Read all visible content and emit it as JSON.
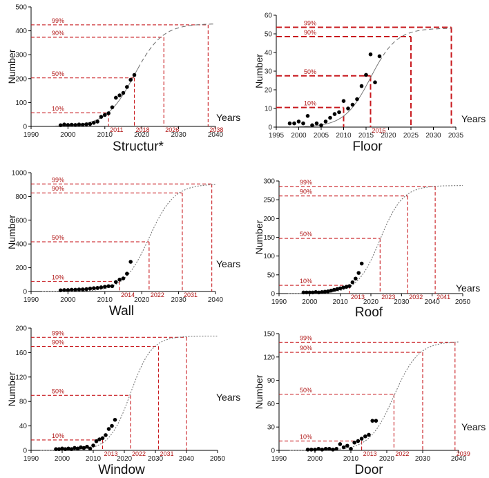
{
  "chart_data": [
    {
      "type": "scatter",
      "title": "Structur*",
      "ylabel": "Number",
      "xlabel": "Years",
      "xlim": [
        1990,
        2040
      ],
      "ylim": [
        0,
        500
      ],
      "xticks": [
        1990,
        2000,
        2010,
        2020,
        2030,
        2040
      ],
      "yticks": [
        0,
        100,
        200,
        300,
        400,
        500
      ],
      "points": {
        "x": [
          1998,
          1999,
          2000,
          2001,
          2002,
          2003,
          2004,
          2005,
          2006,
          2007,
          2008,
          2009,
          2010,
          2011,
          2012,
          2013,
          2014,
          2015,
          2016,
          2017,
          2018
        ],
        "y": [
          5,
          8,
          6,
          7,
          6,
          8,
          7,
          9,
          10,
          15,
          20,
          40,
          48,
          55,
          80,
          120,
          130,
          140,
          165,
          195,
          215
        ]
      },
      "curve": {
        "K": 430,
        "mid": 2018,
        "width": 3.8,
        "x_start": 1996,
        "x_end": 2040,
        "dashed_from": 2019
      },
      "thresholds": [
        {
          "pct_label": "10%",
          "y": 57,
          "year": 2011,
          "year_label": "2011"
        },
        {
          "pct_label": "50%",
          "y": 203,
          "year": 2018,
          "year_label": "2018"
        },
        {
          "pct_label": "90%",
          "y": 373,
          "year": 2026,
          "year_label": "2026"
        },
        {
          "pct_label": "99%",
          "y": 425,
          "year": 2038,
          "year_label": "2038"
        }
      ]
    },
    {
      "type": "scatter",
      "title": "Floor",
      "ylabel": "Number",
      "xlabel": "Years",
      "xlim": [
        1995,
        2035
      ],
      "ylim": [
        0,
        60
      ],
      "xticks": [
        1995,
        2000,
        2005,
        2010,
        2015,
        2020,
        2025,
        2030,
        2035
      ],
      "yticks": [
        0,
        10,
        20,
        30,
        40,
        50,
        60
      ],
      "points": {
        "x": [
          1998,
          1999,
          2000,
          2001,
          2002,
          2003,
          2004,
          2005,
          2006,
          2007,
          2008,
          2009,
          2010,
          2011,
          2012,
          2013,
          2014,
          2015,
          2016,
          2017,
          2018
        ],
        "y": [
          2,
          2,
          3,
          2,
          6,
          1,
          2,
          1,
          3,
          5,
          7,
          8,
          14,
          10,
          12,
          15,
          22,
          28,
          39,
          24,
          38
        ]
      },
      "curve": {
        "K": 53,
        "mid": 2016,
        "width": 2.9,
        "x_start": 1998,
        "x_end": 2034,
        "dashed_from": 2018
      },
      "thresholds": [
        {
          "pct_label": "10%",
          "y": 10.5,
          "year": 2010,
          "year_label": ""
        },
        {
          "pct_label": "50%",
          "y": 27.5,
          "year": 2016,
          "year_label": "2016"
        },
        {
          "pct_label": "90%",
          "y": 48.5,
          "year": 2025,
          "year_label": ""
        },
        {
          "pct_label": "99%",
          "y": 53.5,
          "year": 2034,
          "year_label": ""
        }
      ]
    },
    {
      "type": "scatter",
      "title": "Wall",
      "ylabel": "Number",
      "xlabel": "Years",
      "xlim": [
        1990,
        2040
      ],
      "ylim": [
        0,
        1000
      ],
      "xticks": [
        1990,
        2000,
        2010,
        2020,
        2030,
        2040
      ],
      "yticks": [
        0,
        200,
        400,
        600,
        800,
        1000
      ],
      "points": {
        "x": [
          1998,
          1999,
          2000,
          2001,
          2002,
          2003,
          2004,
          2005,
          2006,
          2007,
          2008,
          2009,
          2010,
          2011,
          2012,
          2013,
          2014,
          2015,
          2016,
          2017
        ],
        "y": [
          10,
          12,
          12,
          15,
          15,
          17,
          18,
          20,
          25,
          28,
          30,
          35,
          40,
          45,
          45,
          80,
          100,
          110,
          150,
          250
        ]
      },
      "curve": {
        "K": 905,
        "mid": 2022,
        "width": 3.4,
        "x_start": 1993,
        "x_end": 2040,
        "dashed_from": 1993
      },
      "thresholds": [
        {
          "pct_label": "10%",
          "y": 85,
          "year": 2014,
          "year_label": "2014"
        },
        {
          "pct_label": "50%",
          "y": 418,
          "year": 2022,
          "year_label": "2022"
        },
        {
          "pct_label": "90%",
          "y": 830,
          "year": 2031,
          "year_label": "2031"
        },
        {
          "pct_label": "99%",
          "y": 905,
          "year": 2039,
          "year_label": ""
        }
      ]
    },
    {
      "type": "scatter",
      "title": "Roof",
      "ylabel": "Number",
      "xlabel": "Years",
      "xlim": [
        1990,
        2050
      ],
      "ylim": [
        0,
        300
      ],
      "xticks": [
        1990,
        2000,
        2010,
        2020,
        2030,
        2040,
        2050
      ],
      "yticks": [
        0,
        50,
        100,
        150,
        200,
        250,
        300
      ],
      "points": {
        "x": [
          1998,
          1999,
          2000,
          2001,
          2002,
          2003,
          2004,
          2005,
          2006,
          2007,
          2008,
          2009,
          2010,
          2011,
          2012,
          2013,
          2014,
          2015,
          2016,
          2017
        ],
        "y": [
          3,
          3,
          3,
          3,
          4,
          3,
          4,
          5,
          6,
          8,
          10,
          12,
          14,
          16,
          18,
          20,
          30,
          40,
          55,
          80
        ]
      },
      "curve": {
        "K": 288,
        "mid": 2023,
        "width": 3.7,
        "x_start": 1993,
        "x_end": 2050,
        "dashed_from": 1993
      },
      "thresholds": [
        {
          "pct_label": "10%",
          "y": 22,
          "year": 2013,
          "year_label": "2013"
        },
        {
          "pct_label": "50%",
          "y": 147,
          "year": 2023,
          "year_label": "2023"
        },
        {
          "pct_label": "90%",
          "y": 260,
          "year": 2032,
          "year_label": "2032"
        },
        {
          "pct_label": "99%",
          "y": 285,
          "year": 2041,
          "year_label": "2041"
        }
      ]
    },
    {
      "type": "scatter",
      "title": "Window",
      "ylabel": "Number",
      "xlabel": "Years",
      "xlim": [
        1990,
        2050
      ],
      "ylim": [
        0,
        200
      ],
      "xticks": [
        1990,
        2000,
        2010,
        2020,
        2030,
        2040,
        2050
      ],
      "yticks": [
        0,
        40,
        80,
        120,
        160,
        200
      ],
      "points": {
        "x": [
          1998,
          1999,
          2000,
          2001,
          2002,
          2003,
          2004,
          2005,
          2006,
          2007,
          2008,
          2009,
          2010,
          2011,
          2012,
          2013,
          2014,
          2015,
          2016,
          2017
        ],
        "y": [
          2,
          2,
          3,
          2,
          3,
          2,
          4,
          3,
          5,
          4,
          6,
          3,
          8,
          15,
          18,
          20,
          25,
          35,
          40,
          50
        ]
      },
      "curve": {
        "K": 187,
        "mid": 2022,
        "width": 3.4,
        "x_start": 1993,
        "x_end": 2050,
        "dashed_from": 1993
      },
      "thresholds": [
        {
          "pct_label": "10%",
          "y": 17,
          "year": 2013,
          "year_label": "2013"
        },
        {
          "pct_label": "50%",
          "y": 90,
          "year": 2022,
          "year_label": "2022"
        },
        {
          "pct_label": "90%",
          "y": 170,
          "year": 2031,
          "year_label": "2031"
        },
        {
          "pct_label": "99%",
          "y": 185,
          "year": 2040,
          "year_label": ""
        }
      ]
    },
    {
      "type": "scatter",
      "title": "Door",
      "ylabel": "Number",
      "xlabel": "Years",
      "xlim": [
        1990,
        2040
      ],
      "ylim": [
        0,
        150
      ],
      "xticks": [
        1990,
        2000,
        2010,
        2020,
        2030,
        2040
      ],
      "yticks": [
        0,
        30,
        60,
        90,
        120,
        150
      ],
      "points": {
        "x": [
          1998,
          1999,
          2000,
          2001,
          2002,
          2003,
          2004,
          2005,
          2006,
          2007,
          2008,
          2009,
          2010,
          2011,
          2012,
          2013,
          2014,
          2015,
          2016,
          2017
        ],
        "y": [
          1,
          1,
          1,
          2,
          1,
          2,
          2,
          1,
          2,
          8,
          4,
          6,
          2,
          10,
          12,
          15,
          18,
          20,
          38,
          38
        ]
      },
      "curve": {
        "K": 140,
        "mid": 2022,
        "width": 3.4,
        "x_start": 1993,
        "x_end": 2040,
        "dashed_from": 1993
      },
      "thresholds": [
        {
          "pct_label": "10%",
          "y": 12,
          "year": 2013,
          "year_label": "2013"
        },
        {
          "pct_label": "50%",
          "y": 72,
          "year": 2022,
          "year_label": "2022"
        },
        {
          "pct_label": "90%",
          "y": 126,
          "year": 2030,
          "year_label": ""
        },
        {
          "pct_label": "99%",
          "y": 139,
          "year": 2039,
          "year_label": "2039"
        }
      ]
    }
  ],
  "colors": {
    "threshold": "#c8191e",
    "points": "#000000",
    "curve": "#777777"
  }
}
